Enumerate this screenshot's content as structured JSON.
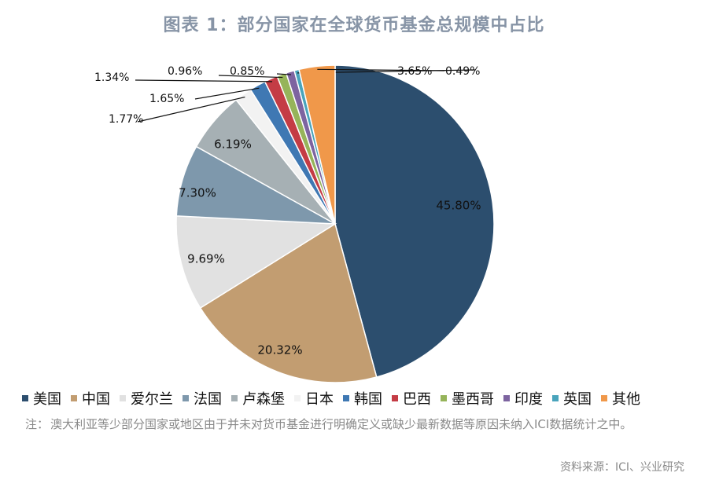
{
  "chart_data": {
    "type": "pie",
    "title": "图表 1：部分国家在全球货币基金总规模中占比",
    "series": [
      {
        "name": "美国",
        "value": 45.8,
        "label": "45.80%",
        "color": "#2c4e6e"
      },
      {
        "name": "中国",
        "value": 20.32,
        "label": "20.32%",
        "color": "#c29d71"
      },
      {
        "name": "爱尔兰",
        "value": 9.69,
        "label": "9.69%",
        "color": "#e1e1e1"
      },
      {
        "name": "法国",
        "value": 7.3,
        "label": "7.30%",
        "color": "#7e98ac"
      },
      {
        "name": "卢森堡",
        "value": 6.19,
        "label": "6.19%",
        "color": "#a6b0b4"
      },
      {
        "name": "日本",
        "value": 1.77,
        "label": "1.77%",
        "color": "#f2f2f2"
      },
      {
        "name": "韩国",
        "value": 1.65,
        "label": "1.65%",
        "color": "#3f78b3"
      },
      {
        "name": "巴西",
        "value": 1.34,
        "label": "1.34%",
        "color": "#c43c45"
      },
      {
        "name": "墨西哥",
        "value": 0.96,
        "label": "0.96%",
        "color": "#96b45a"
      },
      {
        "name": "印度",
        "value": 0.85,
        "label": "0.85%",
        "color": "#7d64a0"
      },
      {
        "name": "英国",
        "value": 0.49,
        "label": "0.49%",
        "color": "#49a4bc"
      },
      {
        "name": "其他",
        "value": 3.65,
        "label": "3.65%",
        "color": "#f0984a"
      }
    ],
    "legend_placement": "bottom"
  },
  "note": {
    "prefix": "注：",
    "text": "澳大利亚等少部分国家或地区由于并未对货币基金进行明确定义或缺少最新数据等原因未纳入ICI数据统计之中。"
  },
  "source": "资料来源：ICI、兴业研究"
}
